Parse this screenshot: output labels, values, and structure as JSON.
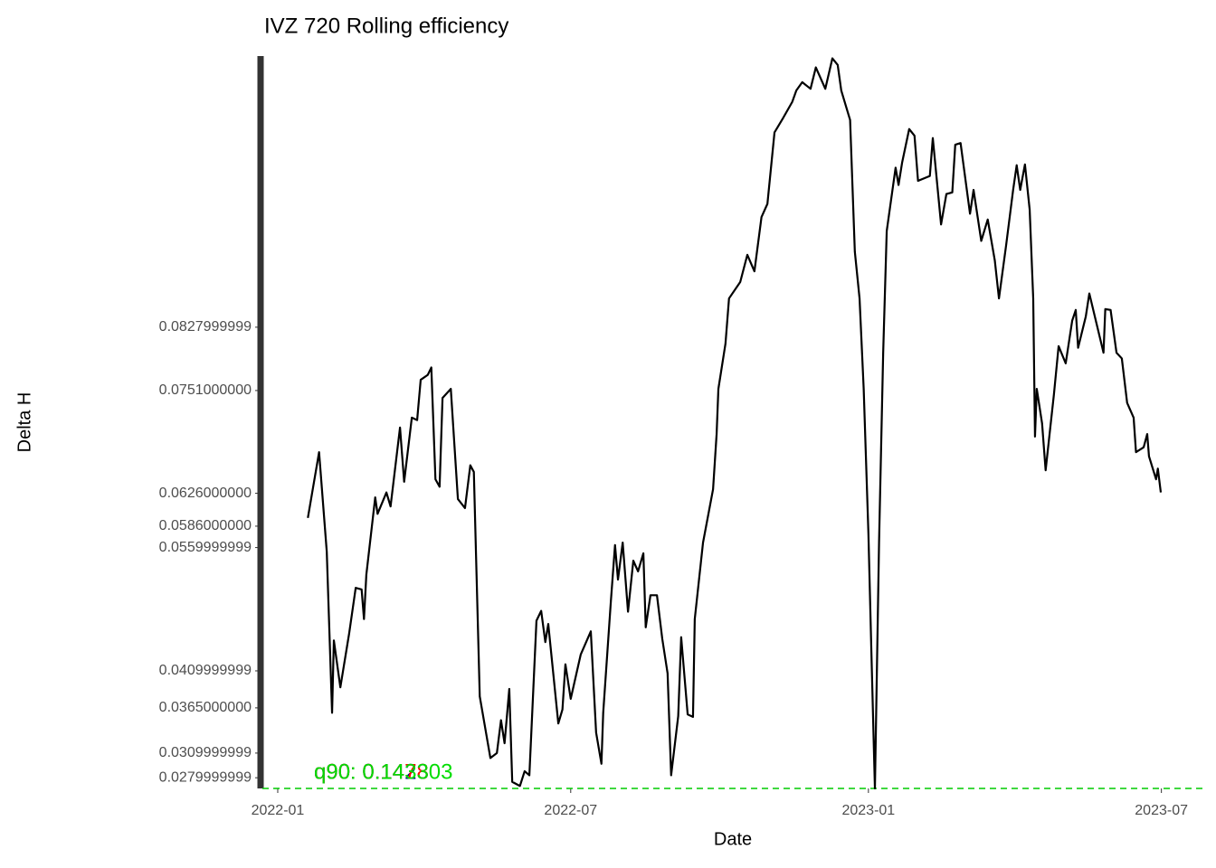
{
  "chart_data": {
    "type": "line",
    "title": "IVZ 720 Rolling efficiency",
    "x_label": "Date",
    "y_label": "Delta H",
    "x": [
      2022.051,
      2022.07,
      2022.083,
      2022.092,
      2022.095,
      2022.106,
      2022.121,
      2022.132,
      2022.142,
      2022.146,
      2022.15,
      2022.165,
      2022.169,
      2022.184,
      2022.191,
      2022.207,
      2022.214,
      2022.227,
      2022.236,
      2022.242,
      2022.254,
      2022.26,
      2022.267,
      2022.274,
      2022.279,
      2022.293,
      2022.305,
      2022.317,
      2022.326,
      2022.332,
      2022.342,
      2022.36,
      2022.371,
      2022.378,
      2022.384,
      2022.392,
      2022.397,
      2022.41,
      2022.418,
      2022.426,
      2022.438,
      2022.446,
      2022.453,
      2022.458,
      2022.475,
      2022.482,
      2022.487,
      2022.496,
      2022.513,
      2022.53,
      2022.539,
      2022.548,
      2022.551,
      2022.564,
      2022.571,
      2022.576,
      2022.584,
      2022.593,
      2022.602,
      2022.61,
      2022.619,
      2022.623,
      2022.631,
      2022.642,
      2022.651,
      2022.66,
      2022.666,
      2022.678,
      2022.683,
      2022.694,
      2022.703,
      2022.706,
      2022.72,
      2022.737,
      2022.743,
      2022.746,
      2022.758,
      2022.764,
      2022.783,
      2022.795,
      2022.807,
      2022.819,
      2022.829,
      2022.841,
      2022.856,
      2022.871,
      2022.878,
      2022.888,
      2022.902,
      2022.911,
      2022.927,
      2022.939,
      2022.948,
      2022.954,
      2022.969,
      2022.977,
      2022.985,
      2022.992,
      2023.0,
      2023.005,
      2023.011,
      2023.018,
      2023.025,
      2023.031,
      2023.046,
      2023.051,
      2023.057,
      2023.069,
      2023.078,
      2023.084,
      2023.104,
      2023.109,
      2023.123,
      2023.132,
      2023.142,
      2023.147,
      2023.156,
      2023.172,
      2023.178,
      2023.191,
      2023.202,
      2023.214,
      2023.221,
      2023.233,
      2023.245,
      2023.251,
      2023.257,
      2023.265,
      2023.273,
      2023.279,
      2023.282,
      2023.285,
      2023.294,
      2023.3,
      2023.314,
      2023.322,
      2023.334,
      2023.345,
      2023.351,
      2023.355,
      2023.368,
      2023.374,
      2023.387,
      2023.398,
      2023.401,
      2023.41,
      2023.42,
      2023.429,
      2023.438,
      2023.449,
      2023.453,
      2023.466,
      2023.472,
      2023.475,
      2023.487,
      2023.49,
      2023.495
    ],
    "values": [
      0.0596,
      0.0676,
      0.0555,
      0.0359,
      0.0447,
      0.039,
      0.0456,
      0.0511,
      0.0509,
      0.0473,
      0.0527,
      0.0621,
      0.0601,
      0.0627,
      0.061,
      0.0706,
      0.064,
      0.0718,
      0.0715,
      0.0764,
      0.077,
      0.0779,
      0.0643,
      0.0634,
      0.0742,
      0.0753,
      0.0619,
      0.0608,
      0.066,
      0.0652,
      0.0379,
      0.0304,
      0.031,
      0.035,
      0.0322,
      0.0388,
      0.0275,
      0.027,
      0.0288,
      0.0283,
      0.0471,
      0.0483,
      0.0445,
      0.0467,
      0.0346,
      0.0363,
      0.0418,
      0.0376,
      0.043,
      0.0458,
      0.0335,
      0.0297,
      0.0359,
      0.0495,
      0.0563,
      0.0521,
      0.0566,
      0.0482,
      0.0544,
      0.0531,
      0.0553,
      0.0463,
      0.0502,
      0.0502,
      0.0449,
      0.0407,
      0.0283,
      0.0355,
      0.0451,
      0.0357,
      0.0354,
      0.0473,
      0.0566,
      0.0631,
      0.0698,
      0.0753,
      0.0808,
      0.0863,
      0.0883,
      0.0916,
      0.0896,
      0.0962,
      0.0978,
      0.1065,
      0.1083,
      0.1102,
      0.1116,
      0.1126,
      0.1118,
      0.1144,
      0.1118,
      0.1155,
      0.1147,
      0.1116,
      0.108,
      0.092,
      0.0863,
      0.0753,
      0.0577,
      0.0434,
      0.0267,
      0.0566,
      0.0797,
      0.0945,
      0.1022,
      0.1001,
      0.1028,
      0.1069,
      0.1061,
      0.1006,
      0.1012,
      0.1058,
      0.0953,
      0.099,
      0.0992,
      0.105,
      0.1052,
      0.0966,
      0.0995,
      0.0933,
      0.0959,
      0.0909,
      0.0863,
      0.0927,
      0.0995,
      0.1025,
      0.0995,
      0.1026,
      0.0971,
      0.0863,
      0.0695,
      0.0753,
      0.0711,
      0.0654,
      0.0746,
      0.0805,
      0.0784,
      0.0836,
      0.0849,
      0.0803,
      0.0841,
      0.0869,
      0.083,
      0.0797,
      0.085,
      0.0849,
      0.0797,
      0.079,
      0.0736,
      0.0718,
      0.0676,
      0.0682,
      0.0698,
      0.0671,
      0.0643,
      0.0656,
      0.0627
    ],
    "color": "#000000",
    "xlim": [
      2021.974,
      2023.567
    ],
    "xticks": [
      {
        "value": 2022.0,
        "label": "2022-01"
      },
      {
        "value": 2022.496,
        "label": "2022-07"
      },
      {
        "value": 2023.0,
        "label": "2023-01"
      },
      {
        "value": 2023.496,
        "label": "2023-07"
      }
    ],
    "ylim": [
      0.0267,
      0.116
    ],
    "yticks": [
      0.0279999999,
      0.0309999999,
      {
        "value": 0.0365,
        "label": "0.0365000000"
      },
      0.0409999999,
      0.0559999999,
      {
        "value": 0.0586,
        "label": "0.0586000000"
      },
      {
        "value": 0.0626,
        "label": "0.0626000000"
      },
      {
        "value": 0.0751,
        "label": "0.0751000000"
      },
      0.0827999999
    ],
    "hline": {
      "value": 0.0267,
      "color": "#00cc00"
    },
    "annotations": [
      {
        "text": "q90: 0.1423",
        "color": "#00008b"
      },
      {
        "text": "q90: 0.1478",
        "color": "#ff0000"
      },
      {
        "text": "q90: 0.143303",
        "color": "#00dd00"
      }
    ]
  }
}
